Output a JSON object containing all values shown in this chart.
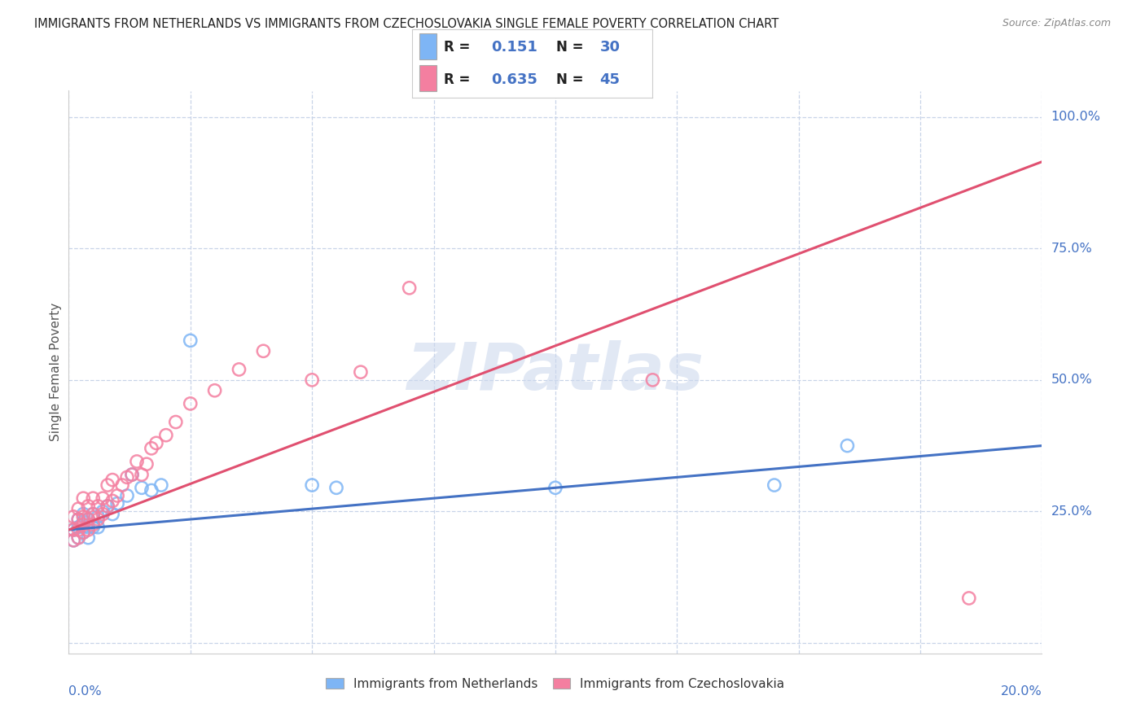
{
  "title": "IMMIGRANTS FROM NETHERLANDS VS IMMIGRANTS FROM CZECHOSLOVAKIA SINGLE FEMALE POVERTY CORRELATION CHART",
  "source": "Source: ZipAtlas.com",
  "ylabel": "Single Female Poverty",
  "watermark": "ZIPatlas",
  "nl_color": "#7eb5f5",
  "cz_color": "#f47fa0",
  "nl_line_color": "#4472c4",
  "cz_line_color": "#e05070",
  "grid_color": "#c8d4e8",
  "background_color": "#ffffff",
  "xlim": [
    0.0,
    0.2
  ],
  "ylim": [
    -0.02,
    1.05
  ],
  "nl_trend": [
    0.215,
    0.375
  ],
  "cz_trend": [
    0.215,
    0.915
  ],
  "nl_x": [
    0.001,
    0.001,
    0.002,
    0.002,
    0.002,
    0.003,
    0.003,
    0.003,
    0.004,
    0.004,
    0.004,
    0.005,
    0.005,
    0.006,
    0.006,
    0.007,
    0.008,
    0.009,
    0.01,
    0.012,
    0.013,
    0.015,
    0.017,
    0.019,
    0.025,
    0.05,
    0.055,
    0.1,
    0.145,
    0.16
  ],
  "nl_y": [
    0.195,
    0.215,
    0.2,
    0.22,
    0.235,
    0.21,
    0.23,
    0.245,
    0.2,
    0.22,
    0.235,
    0.22,
    0.245,
    0.22,
    0.24,
    0.25,
    0.26,
    0.245,
    0.265,
    0.28,
    0.32,
    0.295,
    0.29,
    0.3,
    0.575,
    0.3,
    0.295,
    0.295,
    0.3,
    0.375
  ],
  "cz_x": [
    0.001,
    0.001,
    0.001,
    0.002,
    0.002,
    0.002,
    0.002,
    0.003,
    0.003,
    0.003,
    0.003,
    0.004,
    0.004,
    0.004,
    0.005,
    0.005,
    0.005,
    0.006,
    0.006,
    0.007,
    0.007,
    0.008,
    0.008,
    0.009,
    0.009,
    0.01,
    0.011,
    0.012,
    0.013,
    0.014,
    0.015,
    0.016,
    0.017,
    0.018,
    0.02,
    0.022,
    0.025,
    0.03,
    0.035,
    0.04,
    0.05,
    0.06,
    0.07,
    0.12,
    0.185
  ],
  "cz_y": [
    0.195,
    0.215,
    0.24,
    0.2,
    0.215,
    0.235,
    0.255,
    0.21,
    0.225,
    0.24,
    0.275,
    0.215,
    0.235,
    0.26,
    0.225,
    0.245,
    0.275,
    0.235,
    0.26,
    0.245,
    0.275,
    0.26,
    0.3,
    0.27,
    0.31,
    0.28,
    0.3,
    0.315,
    0.32,
    0.345,
    0.32,
    0.34,
    0.37,
    0.38,
    0.395,
    0.42,
    0.455,
    0.48,
    0.52,
    0.555,
    0.5,
    0.515,
    0.675,
    0.5,
    0.085
  ]
}
